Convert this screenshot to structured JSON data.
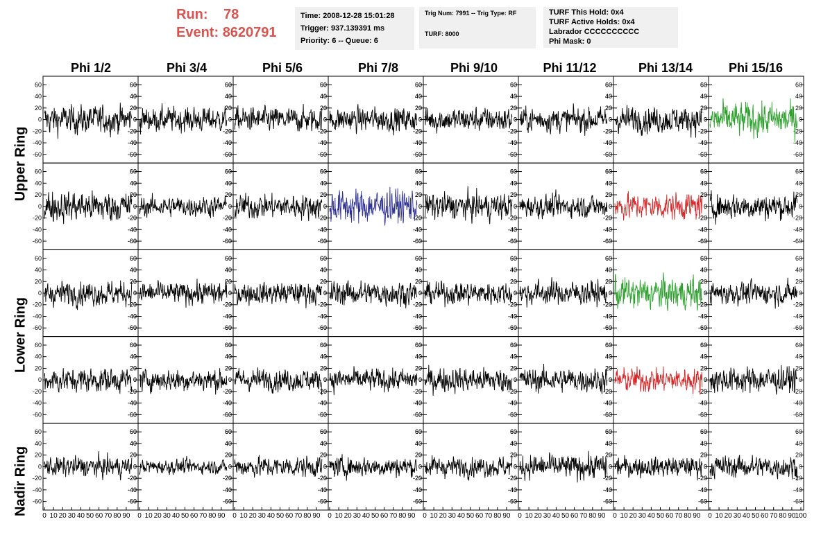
{
  "header": {
    "run_label": "Run:",
    "run_value": "78",
    "event_label": "Event:",
    "event_value": "8620791"
  },
  "info_boxes": [
    {
      "lines": [
        "Time: 2008-12-28 15:01:28",
        "Trigger: 937.139391 ms",
        "Priority: 6 -- Queue: 6"
      ]
    },
    {
      "lines": [
        "Trig Num: 7991 -- Trig Type: RF",
        "",
        "TURF: 8000"
      ]
    },
    {
      "lines": [
        "TURF This Hold: 0x4",
        "TURF Active Holds: 0x4",
        "Labrador CCCCCCCCCC",
        "Phi Mask: 0"
      ]
    }
  ],
  "columns": [
    "Phi 1/2",
    "Phi 3/4",
    "Phi 5/6",
    "Phi 7/8",
    "Phi 9/10",
    "Phi 11/12",
    "Phi 13/14",
    "Phi 15/16"
  ],
  "rings": [
    {
      "label": "Upper Ring",
      "rows": [
        0,
        1
      ]
    },
    {
      "label": "Lower Ring",
      "rows": [
        2,
        3
      ]
    },
    {
      "label": "Nadir Ring",
      "rows": [
        4
      ]
    }
  ],
  "colors": {
    "trace": "#000000",
    "green": "#2ca02c",
    "blue": "#2e3192",
    "red": "#d62728",
    "header_red": "#d9534f"
  },
  "chart_data": {
    "type": "line",
    "description_rows": 5,
    "description_cols": 8,
    "xlim": [
      0,
      100
    ],
    "ylim": [
      -70,
      70
    ],
    "y_ticks": [
      60,
      40,
      20,
      0,
      -20,
      -40,
      -60
    ],
    "x_ticks": [
      0,
      10,
      20,
      30,
      40,
      50,
      60,
      70,
      80,
      90,
      100
    ],
    "x_tick_labels": [
      "0",
      "10",
      "20",
      "30",
      "40",
      "50",
      "60",
      "70",
      "80",
      "90",
      "100"
    ],
    "samples_per_trace": 260,
    "trace_amplitude": [
      [
        14,
        12,
        12,
        12,
        12,
        12,
        13,
        17
      ],
      [
        15,
        10,
        12,
        17,
        13,
        11,
        13,
        13
      ],
      [
        12,
        11,
        11,
        12,
        11,
        12,
        16,
        11
      ],
      [
        12,
        11,
        11,
        11,
        12,
        12,
        12,
        13
      ],
      [
        10,
        7,
        10,
        10,
        10,
        12,
        10,
        11
      ]
    ],
    "trace_color": [
      [
        "trace",
        "trace",
        "trace",
        "trace",
        "trace",
        "trace",
        "trace",
        "green"
      ],
      [
        "trace",
        "trace",
        "trace",
        "blue",
        "trace",
        "trace",
        "red",
        "trace"
      ],
      [
        "trace",
        "trace",
        "trace",
        "trace",
        "trace",
        "trace",
        "green",
        "trace"
      ],
      [
        "trace",
        "trace",
        "trace",
        "trace",
        "trace",
        "trace",
        "red",
        "trace"
      ],
      [
        "trace",
        "trace",
        "trace",
        "trace",
        "trace",
        "trace",
        "trace",
        "trace"
      ]
    ]
  }
}
